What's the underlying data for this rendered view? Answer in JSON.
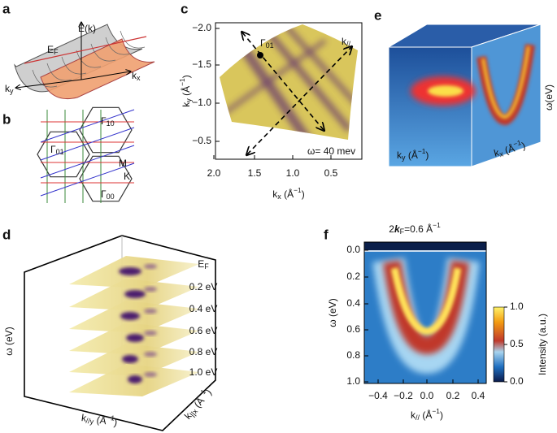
{
  "panel_labels": [
    "a",
    "b",
    "c",
    "d",
    "e",
    "f"
  ],
  "a": {
    "energy_axis": "E(k)",
    "fermi_level": [
      {
        "text": "E"
      },
      {
        "sub": "F"
      }
    ],
    "ky": [
      {
        "text": "k"
      },
      {
        "sub": "y"
      }
    ],
    "kx": [
      {
        "text": "k"
      },
      {
        "sub": "x"
      }
    ]
  },
  "b": {
    "gamma_10": [
      {
        "text": "Γ"
      },
      {
        "sub": "10"
      }
    ],
    "gamma_01": [
      {
        "text": "Γ"
      },
      {
        "sub": "01"
      }
    ],
    "gamma_00": [
      {
        "text": "Γ"
      },
      {
        "sub": "00"
      }
    ],
    "m_point": "M",
    "k_point": "K"
  },
  "c": {
    "y_axis_label": [
      {
        "text": "k"
      },
      {
        "sub": "y"
      },
      {
        "text": " (Å"
      },
      {
        "sup": "−1"
      },
      {
        "text": ")"
      }
    ],
    "y_ticks": [
      "−2.0",
      "−1.5",
      "−1.0",
      "−0.5"
    ],
    "x_ticks": [
      "2.0",
      "1.5",
      "1.0",
      "0.5"
    ],
    "x_axis_label": [
      {
        "text": "k"
      },
      {
        "sub": "x"
      },
      {
        "text": " (Å"
      },
      {
        "sup": "−1"
      },
      {
        "text": ")"
      }
    ],
    "gamma_01": [
      {
        "text": "Γ"
      },
      {
        "sub": "01"
      }
    ],
    "k_parallel": [
      {
        "text": "k"
      },
      {
        "sub": "//"
      }
    ],
    "energy_note": "ω= 40 mev"
  },
  "d": {
    "slice_labels": [
      [
        {
          "text": "E"
        },
        {
          "sub": "F"
        }
      ],
      "0.2 eV",
      "0.4 eV",
      "0.6 eV",
      "0.8 eV",
      "1.0 eV"
    ],
    "energy_axis": "ω (eV)",
    "ky_axis": [
      {
        "text": "k"
      },
      {
        "sub": "//y"
      },
      {
        "text": " (Å"
      },
      {
        "sup": "−1"
      },
      {
        "text": ")"
      }
    ],
    "kx_axis": [
      {
        "text": "k"
      },
      {
        "sub": "||x"
      },
      {
        "text": " (Å"
      },
      {
        "sup": "−1"
      },
      {
        "text": ")"
      }
    ]
  },
  "e": {
    "energy_axis": "ω(eV)",
    "ky_axis": [
      {
        "text": "k"
      },
      {
        "sub": "y"
      },
      {
        "text": " (Å"
      },
      {
        "sup": "−1"
      },
      {
        "text": ")"
      }
    ],
    "kx_axis": [
      {
        "text": "k"
      },
      {
        "sub": "x"
      },
      {
        "text": " (Å"
      },
      {
        "sup": "−1"
      },
      {
        "text": ")"
      }
    ]
  },
  "f": {
    "title": [
      {
        "text": "2"
      },
      {
        "bold": "k"
      },
      {
        "sub": "F"
      },
      {
        "text": "=0.6 Å"
      },
      {
        "sup": "−1"
      }
    ],
    "y_ticks": [
      "0.0",
      "0.2",
      "0.4",
      "0.6",
      "0.8",
      "1.0"
    ],
    "x_ticks": [
      "−0.4",
      "−0.2",
      "0.0",
      "0.2",
      "0.4"
    ],
    "y_axis_label": "ω (eV)",
    "x_axis_label": [
      {
        "text": "k"
      },
      {
        "sub": "//"
      },
      {
        "text": " (Å"
      },
      {
        "sup": "−1"
      },
      {
        "text": ")"
      }
    ],
    "colorbar_ticks": [
      "0.0",
      "0.5",
      "1.0"
    ],
    "colorbar_label": "Intensity (a.u.)"
  }
}
